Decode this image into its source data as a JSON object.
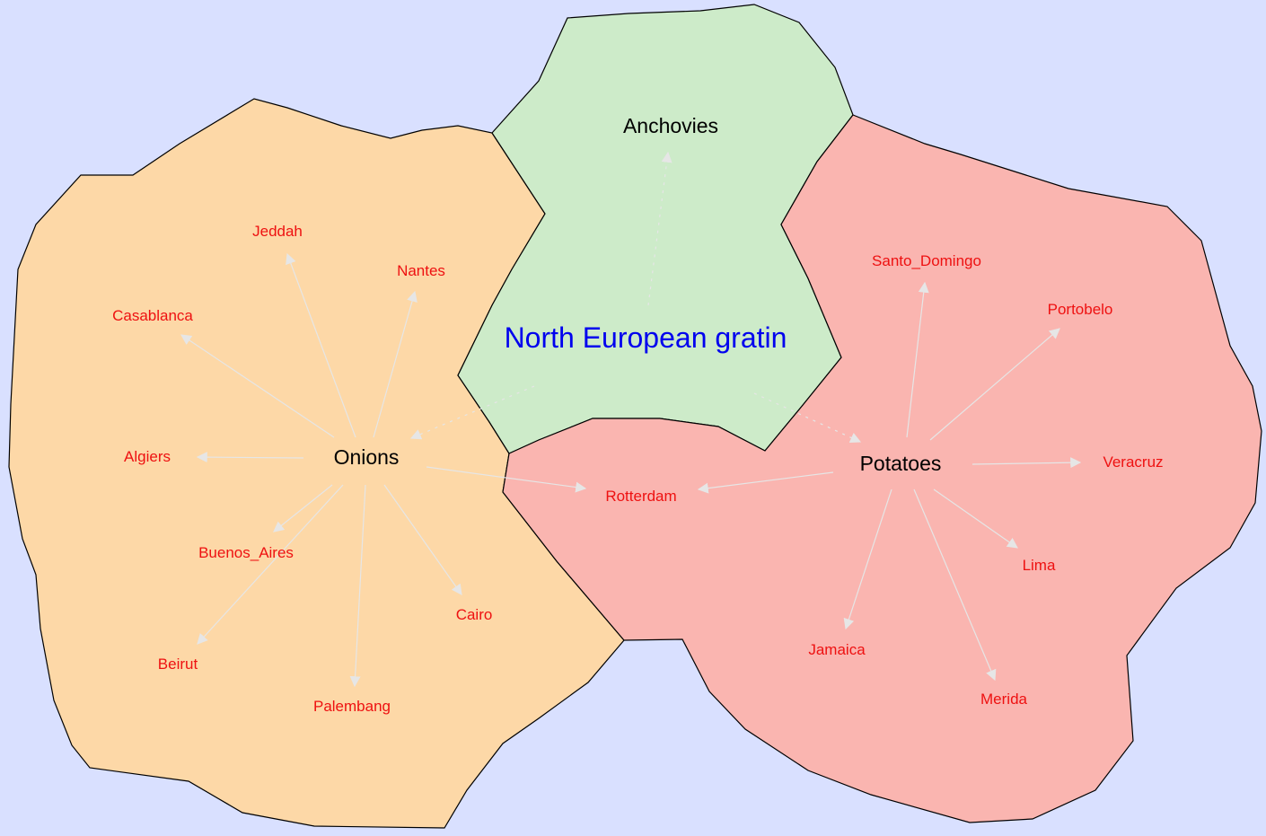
{
  "title": "North European gratin",
  "colors": {
    "background": "#d9e0ff",
    "onions_region": "#fdd8a7",
    "anchovies_region": "#cdebc9",
    "potatoes_region": "#fab5b0",
    "title": "#0000ee",
    "hub_label": "#000000",
    "city_label": "#ee1111",
    "edge": "#e6e6e6"
  },
  "hubs": {
    "onions": "Onions",
    "anchovies": "Anchovies",
    "potatoes": "Potatoes"
  },
  "cities": {
    "jeddah": "Jeddah",
    "nantes": "Nantes",
    "casablanca": "Casablanca",
    "algiers": "Algiers",
    "buenos_aires": "Buenos_Aires",
    "beirut": "Beirut",
    "palembang": "Palembang",
    "cairo": "Cairo",
    "rotterdam": "Rotterdam",
    "santo_domingo": "Santo_Domingo",
    "portobelo": "Portobelo",
    "veracruz": "Veracruz",
    "lima": "Lima",
    "jamaica": "Jamaica",
    "merida": "Merida"
  }
}
